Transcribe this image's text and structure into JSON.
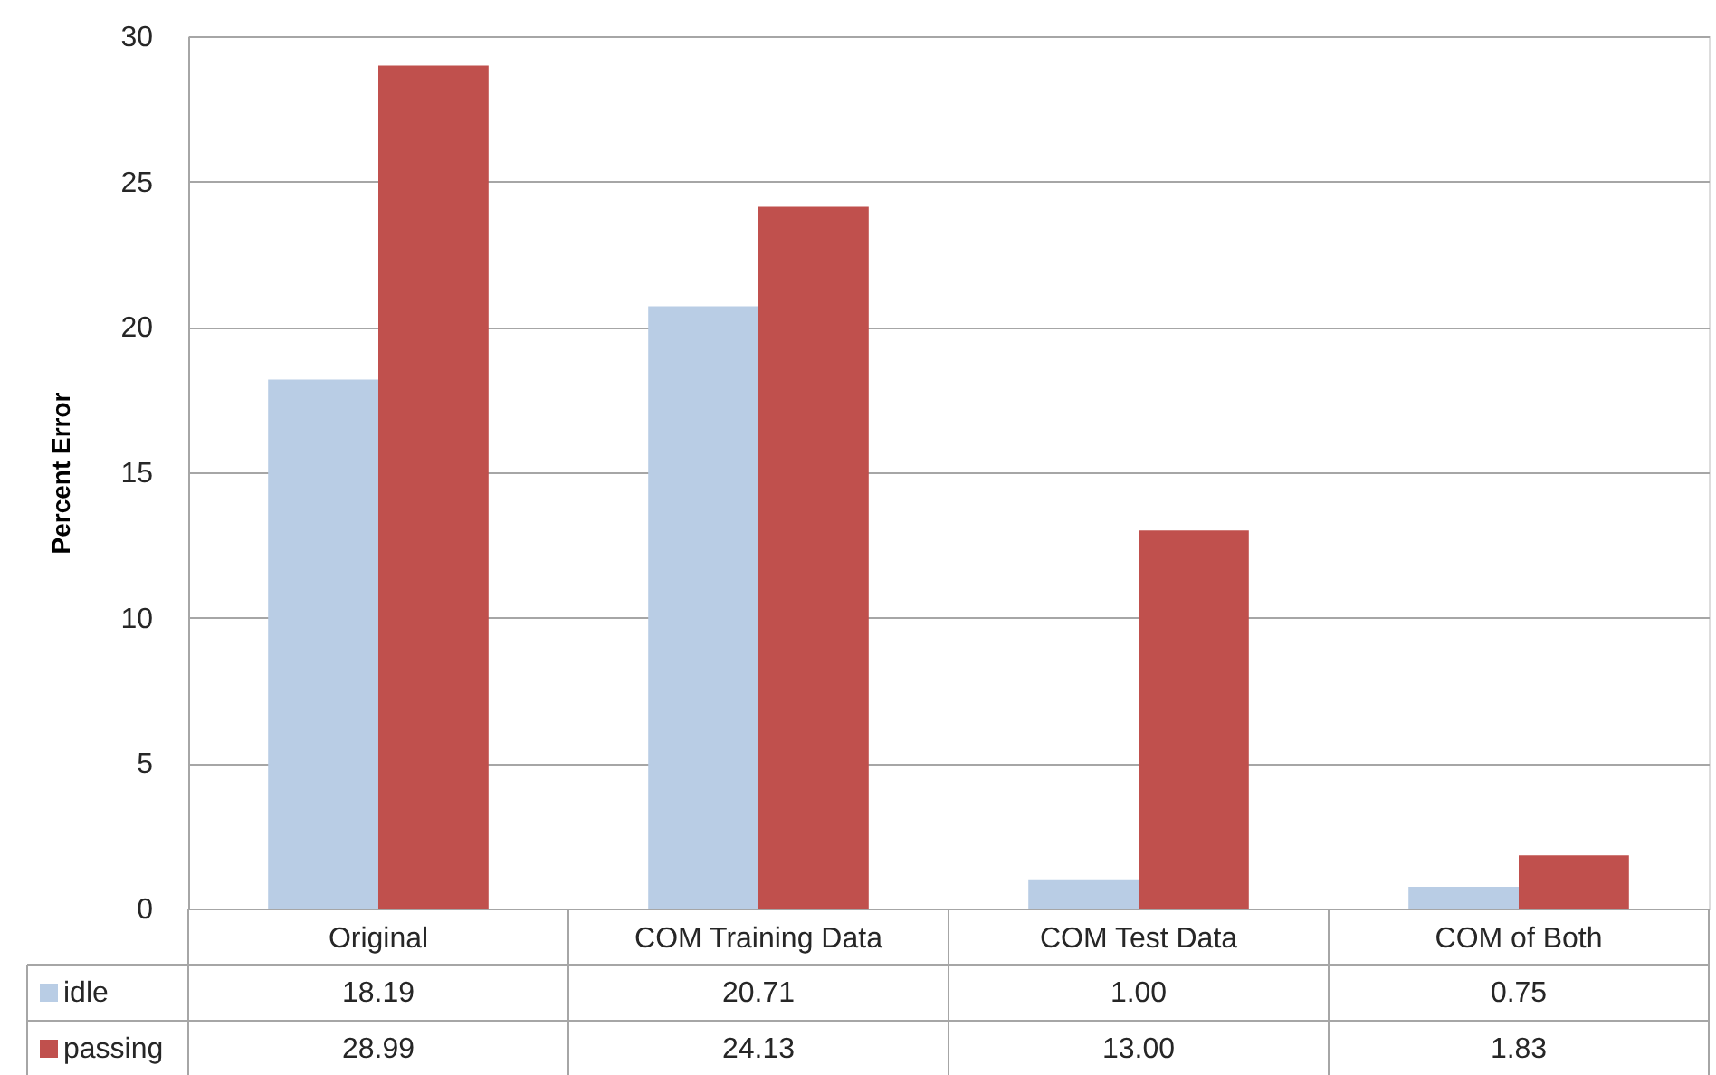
{
  "chart_data": {
    "type": "bar",
    "ylabel": "Percent Error",
    "categories": [
      "Original",
      "COM Training Data",
      "COM Test Data",
      "COM of Both"
    ],
    "series": [
      {
        "name": "idle",
        "color": "#b9cde5",
        "values": [
          18.19,
          20.71,
          1.0,
          0.75
        ],
        "value_labels": [
          "18.19",
          "20.71",
          "1.00",
          "0.75"
        ]
      },
      {
        "name": "passing",
        "color": "#c0504d",
        "values": [
          28.99,
          24.13,
          13.0,
          1.83
        ],
        "value_labels": [
          "28.99",
          "24.13",
          "13.00",
          "1.83"
        ]
      }
    ],
    "ylim": [
      0,
      30
    ],
    "yticks": [
      0,
      5,
      10,
      15,
      20,
      25,
      30
    ],
    "grid": "y",
    "legend": "bottom left"
  }
}
